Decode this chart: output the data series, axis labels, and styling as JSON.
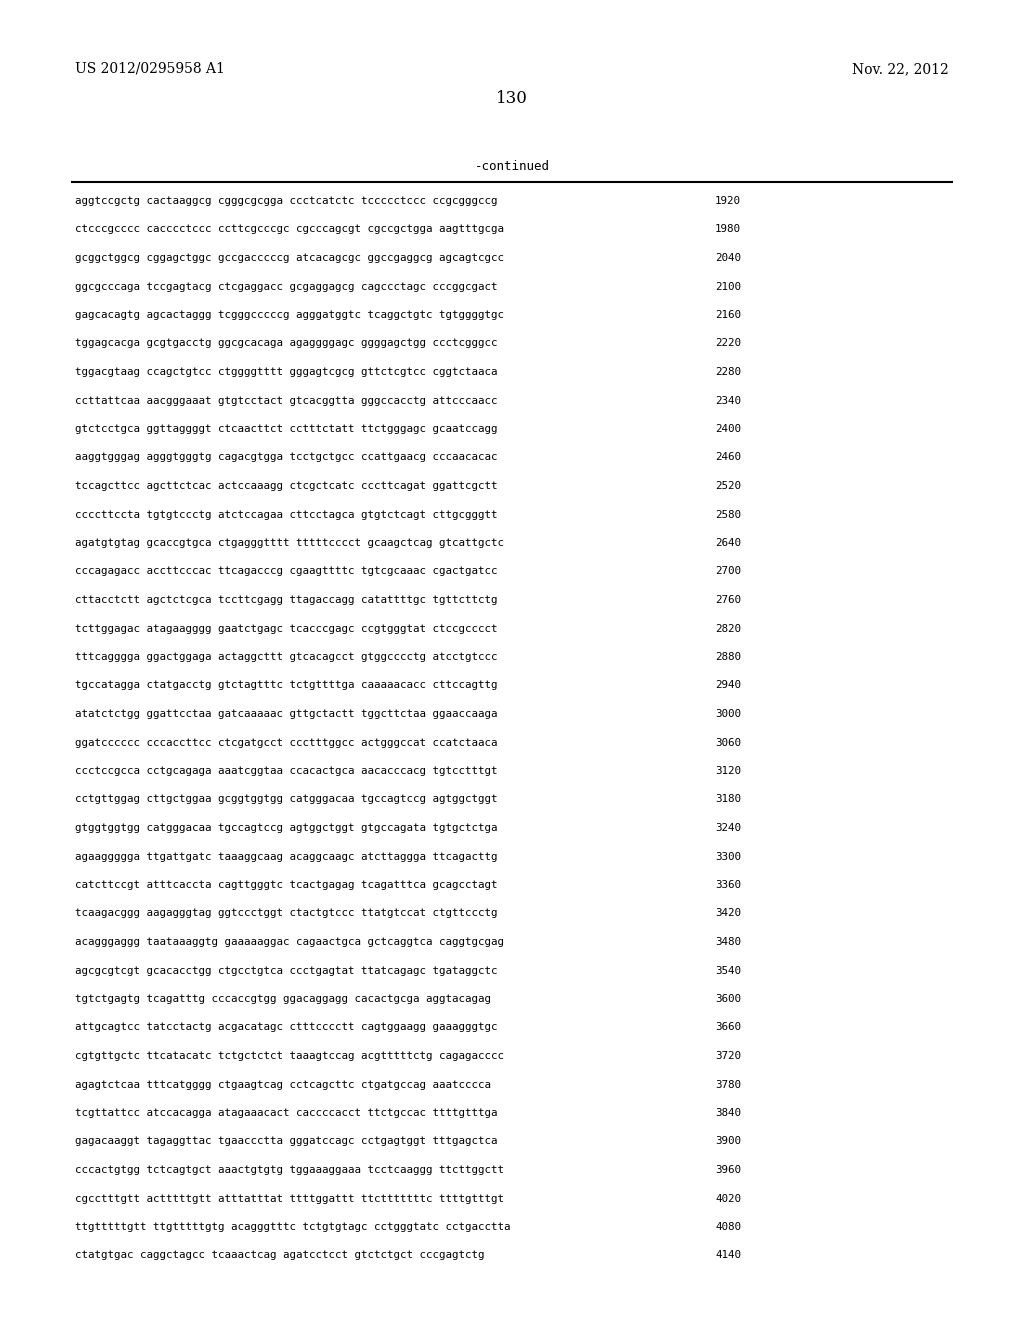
{
  "header_left": "US 2012/0295958 A1",
  "header_right": "Nov. 22, 2012",
  "page_number": "130",
  "continued_label": "-continued",
  "background_color": "#ffffff",
  "text_color": "#000000",
  "sequences": [
    [
      "aggtccgctg cactaaggcg cgggcgcgga ccctcatctc tccccctccc ccgcgggccg",
      "1920"
    ],
    [
      "ctcccgcccc cacccctccc ccttcgcccgc cgcccagcgt cgccgctgga aagtttgcga",
      "1980"
    ],
    [
      "gcggctggcg cggagctggc gccgacccccg atcacagcgc ggccgaggcg agcagtcgcc",
      "2040"
    ],
    [
      "ggcgcccaga tccgagtacg ctcgaggacc gcgaggagcg cagccctagc cccggcgact",
      "2100"
    ],
    [
      "gagcacagtg agcactaggg tcgggcccccg agggatggtc tcaggctgtc tgtggggtgc",
      "2160"
    ],
    [
      "tggagcacga gcgtgacctg ggcgcacaga agaggggagc ggggagctgg ccctcgggcc",
      "2220"
    ],
    [
      "tggacgtaag ccagctgtcc ctggggtttt gggagtcgcg gttctcgtcc cggtctaaca",
      "2280"
    ],
    [
      "ccttattcaa aacgggaaat gtgtcctact gtcacggtta gggccacctg attcccaacc",
      "2340"
    ],
    [
      "gtctcctgca ggttaggggt ctcaacttct cctttctatt ttctgggagc gcaatccagg",
      "2400"
    ],
    [
      "aaggtgggag agggtgggtg cagacgtgga tcctgctgcc ccattgaacg cccaacacac",
      "2460"
    ],
    [
      "tccagcttcc agcttctcac actccaaagg ctcgctcatc cccttcagat ggattcgctt",
      "2520"
    ],
    [
      "ccccttccta tgtgtccctg atctccagaa cttcctagca gtgtctcagt cttgcgggtt",
      "2580"
    ],
    [
      "agatgtgtag gcaccgtgca ctgagggtttt tttttcccct gcaagctcag gtcattgctc",
      "2640"
    ],
    [
      "cccagagacc accttcccac ttcagacccg cgaagttttc tgtcgcaaac cgactgatcc",
      "2700"
    ],
    [
      "cttacctctt agctctcgca tccttcgagg ttagaccagg catattttgc tgttcttctg",
      "2760"
    ],
    [
      "tcttggagac atagaagggg gaatctgagc tcacccgagc ccgtgggtat ctccgcccct",
      "2820"
    ],
    [
      "tttcagggga ggactggaga actaggcttt gtcacagcct gtggcccctg atcctgtccc",
      "2880"
    ],
    [
      "tgccatagga ctatgacctg gtctagtttc tctgttttga caaaaacacc cttccagttg",
      "2940"
    ],
    [
      "atatctctgg ggattcctaa gatcaaaaac gttgctactt tggcttctaa ggaaccaaga",
      "3000"
    ],
    [
      "ggatcccccc cccaccttcc ctcgatgcct ccctttggcc actgggccat ccatctaaca",
      "3060"
    ],
    [
      "ccctccgcca cctgcagaga aaatcggtaa ccacactgca aacacccacg tgtcctttgt",
      "3120"
    ],
    [
      "cctgttggag cttgctggaa gcggtggtgg catgggacaa tgccagtccg agtggctggt",
      "3180"
    ],
    [
      "gtggtggtgg catgggacaa tgccagtccg agtggctggt gtgccagata tgtgctctga",
      "3240"
    ],
    [
      "agaaggggga ttgattgatc taaaggcaag acaggcaagc atcttaggga ttcagacttg",
      "3300"
    ],
    [
      "catcttccgt atttcaccta cagttgggtc tcactgagag tcagatttca gcagcctagt",
      "3360"
    ],
    [
      "tcaagacggg aagagggtag ggtccctggt ctactgtccc ttatgtccat ctgttccctg",
      "3420"
    ],
    [
      "acagggaggg taataaaggtg gaaaaaggac cagaactgca gctcaggtca caggtgcgag",
      "3480"
    ],
    [
      "agcgcgtcgt gcacacctgg ctgcctgtca ccctgagtat ttatcagagc tgataggctc",
      "3540"
    ],
    [
      "tgtctgagtg tcagatttg cccaccgtgg ggacaggagg cacactgcga aggtacagag",
      "3600"
    ],
    [
      "attgcagtcc tatcctactg acgacatagc ctttcccctt cagtggaagg gaaagggtgc",
      "3660"
    ],
    [
      "cgtgttgctc ttcatacatc tctgctctct taaagtccag acgtttttctg cagagacccc",
      "3720"
    ],
    [
      "agagtctcaa tttcatgggg ctgaagtcag cctcagcttc ctgatgccag aaatcccca",
      "3780"
    ],
    [
      "tcgttattcc atccacagga atagaaacact caccccacct ttctgccac ttttgtttga",
      "3840"
    ],
    [
      "gagacaaggt tagaggttac tgaaccctta gggatccagc cctgagtggt tttgagctca",
      "3900"
    ],
    [
      "cccactgtgg tctcagtgct aaactgtgtg tggaaaggaaa tcctcaaggg ttcttggctt",
      "3960"
    ],
    [
      "cgcctttgtt actttttgtt atttatttat ttttggattt ttctttttttc ttttgtttgt",
      "4020"
    ],
    [
      "ttgtttttgtt ttgtttttgtg acagggtttc tctgtgtagc cctgggtatc cctgacctta",
      "4080"
    ],
    [
      "ctatgtgac caggctagcc tcaaactcag agatcctcct gtctctgct cccgagtctg",
      "4140"
    ]
  ]
}
